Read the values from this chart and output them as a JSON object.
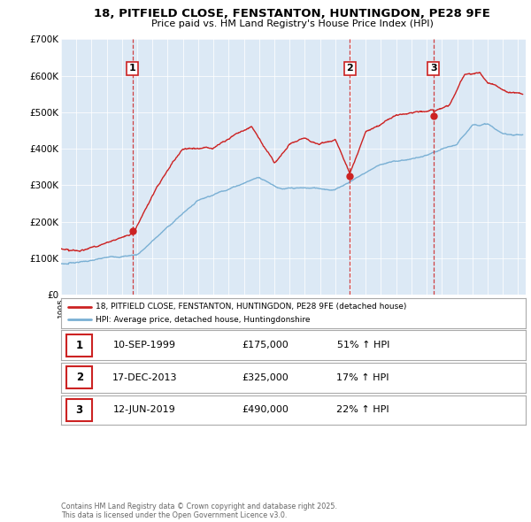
{
  "title": "18, PITFIELD CLOSE, FENSTANTON, HUNTINGDON, PE28 9FE",
  "subtitle": "Price paid vs. HM Land Registry's House Price Index (HPI)",
  "bg_color": "#dce9f5",
  "red_color": "#cc2222",
  "blue_color": "#7ab0d4",
  "ylim": [
    0,
    700000
  ],
  "yticks": [
    0,
    100000,
    200000,
    300000,
    400000,
    500000,
    600000,
    700000
  ],
  "ytick_labels": [
    "£0",
    "£100K",
    "£200K",
    "£300K",
    "£400K",
    "£500K",
    "£600K",
    "£700K"
  ],
  "xlim_start": 1995.0,
  "xlim_end": 2025.5,
  "sale_dates": [
    1999.69,
    2013.96,
    2019.45
  ],
  "sale_prices": [
    175000,
    325000,
    490000
  ],
  "sale_labels": [
    "1",
    "2",
    "3"
  ],
  "legend_red_label": "18, PITFIELD CLOSE, FENSTANTON, HUNTINGDON, PE28 9FE (detached house)",
  "legend_blue_label": "HPI: Average price, detached house, Huntingdonshire",
  "table_rows": [
    {
      "num": "1",
      "date": "10-SEP-1999",
      "price": "£175,000",
      "hpi": "51% ↑ HPI"
    },
    {
      "num": "2",
      "date": "17-DEC-2013",
      "price": "£325,000",
      "hpi": "17% ↑ HPI"
    },
    {
      "num": "3",
      "date": "12-JUN-2019",
      "price": "£490,000",
      "hpi": "22% ↑ HPI"
    }
  ],
  "footer": "Contains HM Land Registry data © Crown copyright and database right 2025.\nThis data is licensed under the Open Government Licence v3.0."
}
